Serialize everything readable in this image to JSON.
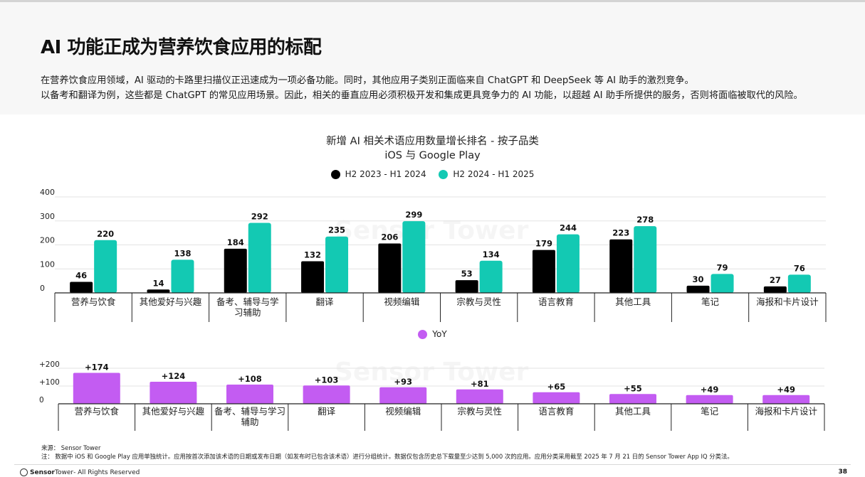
{
  "title": "AI 功能正成为营养饮食应用的标配",
  "description": [
    "在营养饮食应用领域，AI 驱动的卡路里扫描仪正迅速成为一项必备功能。同时，其他应用子类别正面临来自 ChatGPT 和 DeepSeek 等 AI 助手的激烈竞争。",
    "以备考和翻译为例，这些都是 ChatGPT 的常见应用场景。因此，相关的垂直应用必须积极开发和集成更具竞争力的 AI 功能，以超越 AI 助手所提供的服务，否则将面临被取代的风险。"
  ],
  "watermark": "Sensor Tower",
  "chart_data": [
    {
      "type": "bar",
      "title": "新增 AI 相关术语应用数量增长排名 - 按子品类",
      "subtitle": "iOS 与 Google Play",
      "categories": [
        "营养与饮食",
        "其他爱好与兴趣",
        "备考、辅导与学习辅助",
        "翻译",
        "视频编辑",
        "宗教与灵性",
        "语言教育",
        "其他工具",
        "笔记",
        "海报和卡片设计"
      ],
      "series": [
        {
          "name": "H2 2023 - H1 2024",
          "color": "#000000",
          "values": [
            46,
            14,
            184,
            132,
            206,
            53,
            179,
            223,
            30,
            27
          ]
        },
        {
          "name": "H2 2024 - H1 2025",
          "color": "#13c9b3",
          "values": [
            220,
            138,
            292,
            235,
            299,
            134,
            244,
            278,
            79,
            76
          ]
        }
      ],
      "ylim": [
        0,
        400
      ],
      "yticks": [
        "0",
        "100",
        "200",
        "300",
        "400"
      ],
      "grid": true,
      "legend": "top-center"
    },
    {
      "type": "bar",
      "title": "",
      "categories": [
        "营养与饮食",
        "其他爱好与兴趣",
        "备考、辅导与学习辅助",
        "翻译",
        "视频编辑",
        "宗教与灵性",
        "语言教育",
        "其他工具",
        "笔记",
        "海报和卡片设计"
      ],
      "series": [
        {
          "name": "YoY",
          "color": "#c35cf2",
          "values": [
            174,
            124,
            108,
            103,
            93,
            81,
            65,
            55,
            49,
            49
          ]
        }
      ],
      "value_labels": [
        "+174",
        "+124",
        "+108",
        "+103",
        "+93",
        "+81",
        "+65",
        "+55",
        "+49",
        "+49"
      ],
      "ylim": [
        0,
        200
      ],
      "yticks": [
        "0",
        "+100",
        "+200"
      ],
      "grid": true,
      "legend": "top-center"
    }
  ],
  "footer": {
    "source": "来源： Sensor Tower",
    "note": "注： 数据中 iOS 和 Google Play 应用单独统计。应用按首次添加该术语的日期或发布日期（如发布时已包含该术语）进行分组统计。数据仅包含历史总下载量至少达到 5,000 次的应用。应用分类采用截至 2025 年 7 月 21 日的 Sensor Tower App IQ 分类法。",
    "brand_strong": "Sensor",
    "brand_rest": "Tower",
    "rights": " - All Rights Reserved",
    "page": "38"
  }
}
